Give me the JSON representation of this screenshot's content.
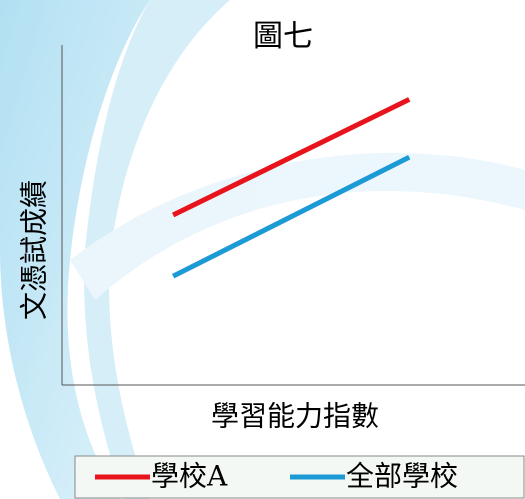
{
  "chart_data": {
    "type": "line",
    "title": "圖七",
    "x_label": "學習能力指數",
    "y_label": "文憑試成績",
    "xlim": [
      0,
      100
    ],
    "ylim": [
      0,
      100
    ],
    "series": [
      {
        "name": "學校A",
        "color": "#e8141c",
        "x": [
          24,
          75
        ],
        "values": [
          50,
          84
        ]
      },
      {
        "name": "全部學校",
        "color": "#1b9ad6",
        "x": [
          24,
          75
        ],
        "values": [
          32,
          67
        ]
      }
    ]
  }
}
